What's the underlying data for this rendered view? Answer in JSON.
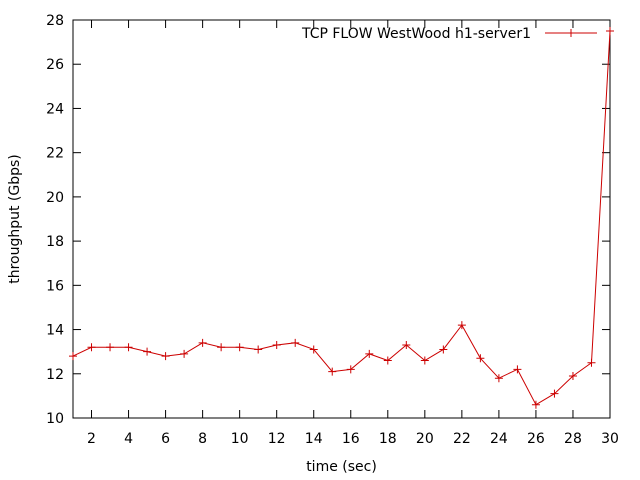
{
  "chart_data": {
    "type": "line",
    "xlabel": "time (sec)",
    "ylabel": "throughput (Gbps)",
    "xlim": [
      1,
      30
    ],
    "ylim": [
      10,
      28
    ],
    "xticks": [
      2,
      4,
      6,
      8,
      10,
      12,
      14,
      16,
      18,
      20,
      22,
      24,
      26,
      28,
      30
    ],
    "yticks": [
      10,
      12,
      14,
      16,
      18,
      20,
      22,
      24,
      26,
      28
    ],
    "grid": false,
    "legend_position": "top-right",
    "series": [
      {
        "name": "TCP FLOW WestWood h1-server1",
        "color": "#cc0000",
        "marker": "plus",
        "x": [
          1,
          2,
          3,
          4,
          5,
          6,
          7,
          8,
          9,
          10,
          11,
          12,
          13,
          14,
          15,
          16,
          17,
          18,
          19,
          20,
          21,
          22,
          23,
          24,
          25,
          26,
          27,
          28,
          29,
          30
        ],
        "values": [
          12.8,
          13.2,
          13.2,
          13.2,
          13.0,
          12.8,
          12.9,
          13.4,
          13.2,
          13.2,
          13.1,
          13.3,
          13.4,
          13.1,
          12.1,
          12.2,
          12.9,
          12.6,
          13.3,
          12.6,
          13.1,
          14.2,
          12.7,
          11.8,
          12.2,
          10.6,
          11.1,
          11.9,
          12.5,
          27.5
        ]
      }
    ]
  }
}
